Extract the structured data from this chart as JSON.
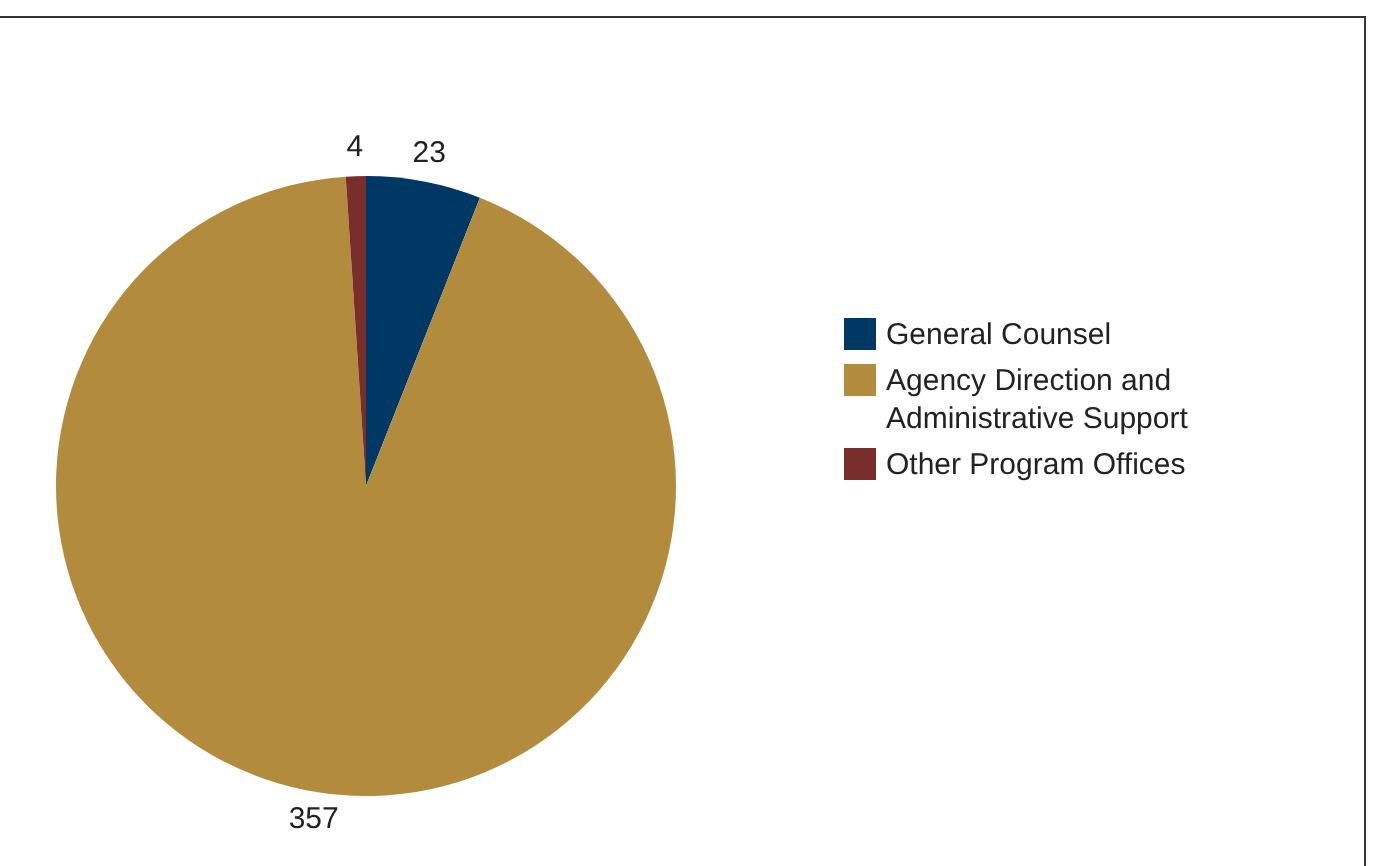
{
  "chart_data": {
    "type": "pie",
    "categories": [
      "General Counsel",
      "Agency Direction and Administrative Support",
      "Other Program Offices"
    ],
    "values": [
      23,
      357,
      4
    ],
    "colors": [
      "#003865",
      "#b38b3d",
      "#7a2e2b"
    ],
    "data_labels": true,
    "legend": "right"
  }
}
